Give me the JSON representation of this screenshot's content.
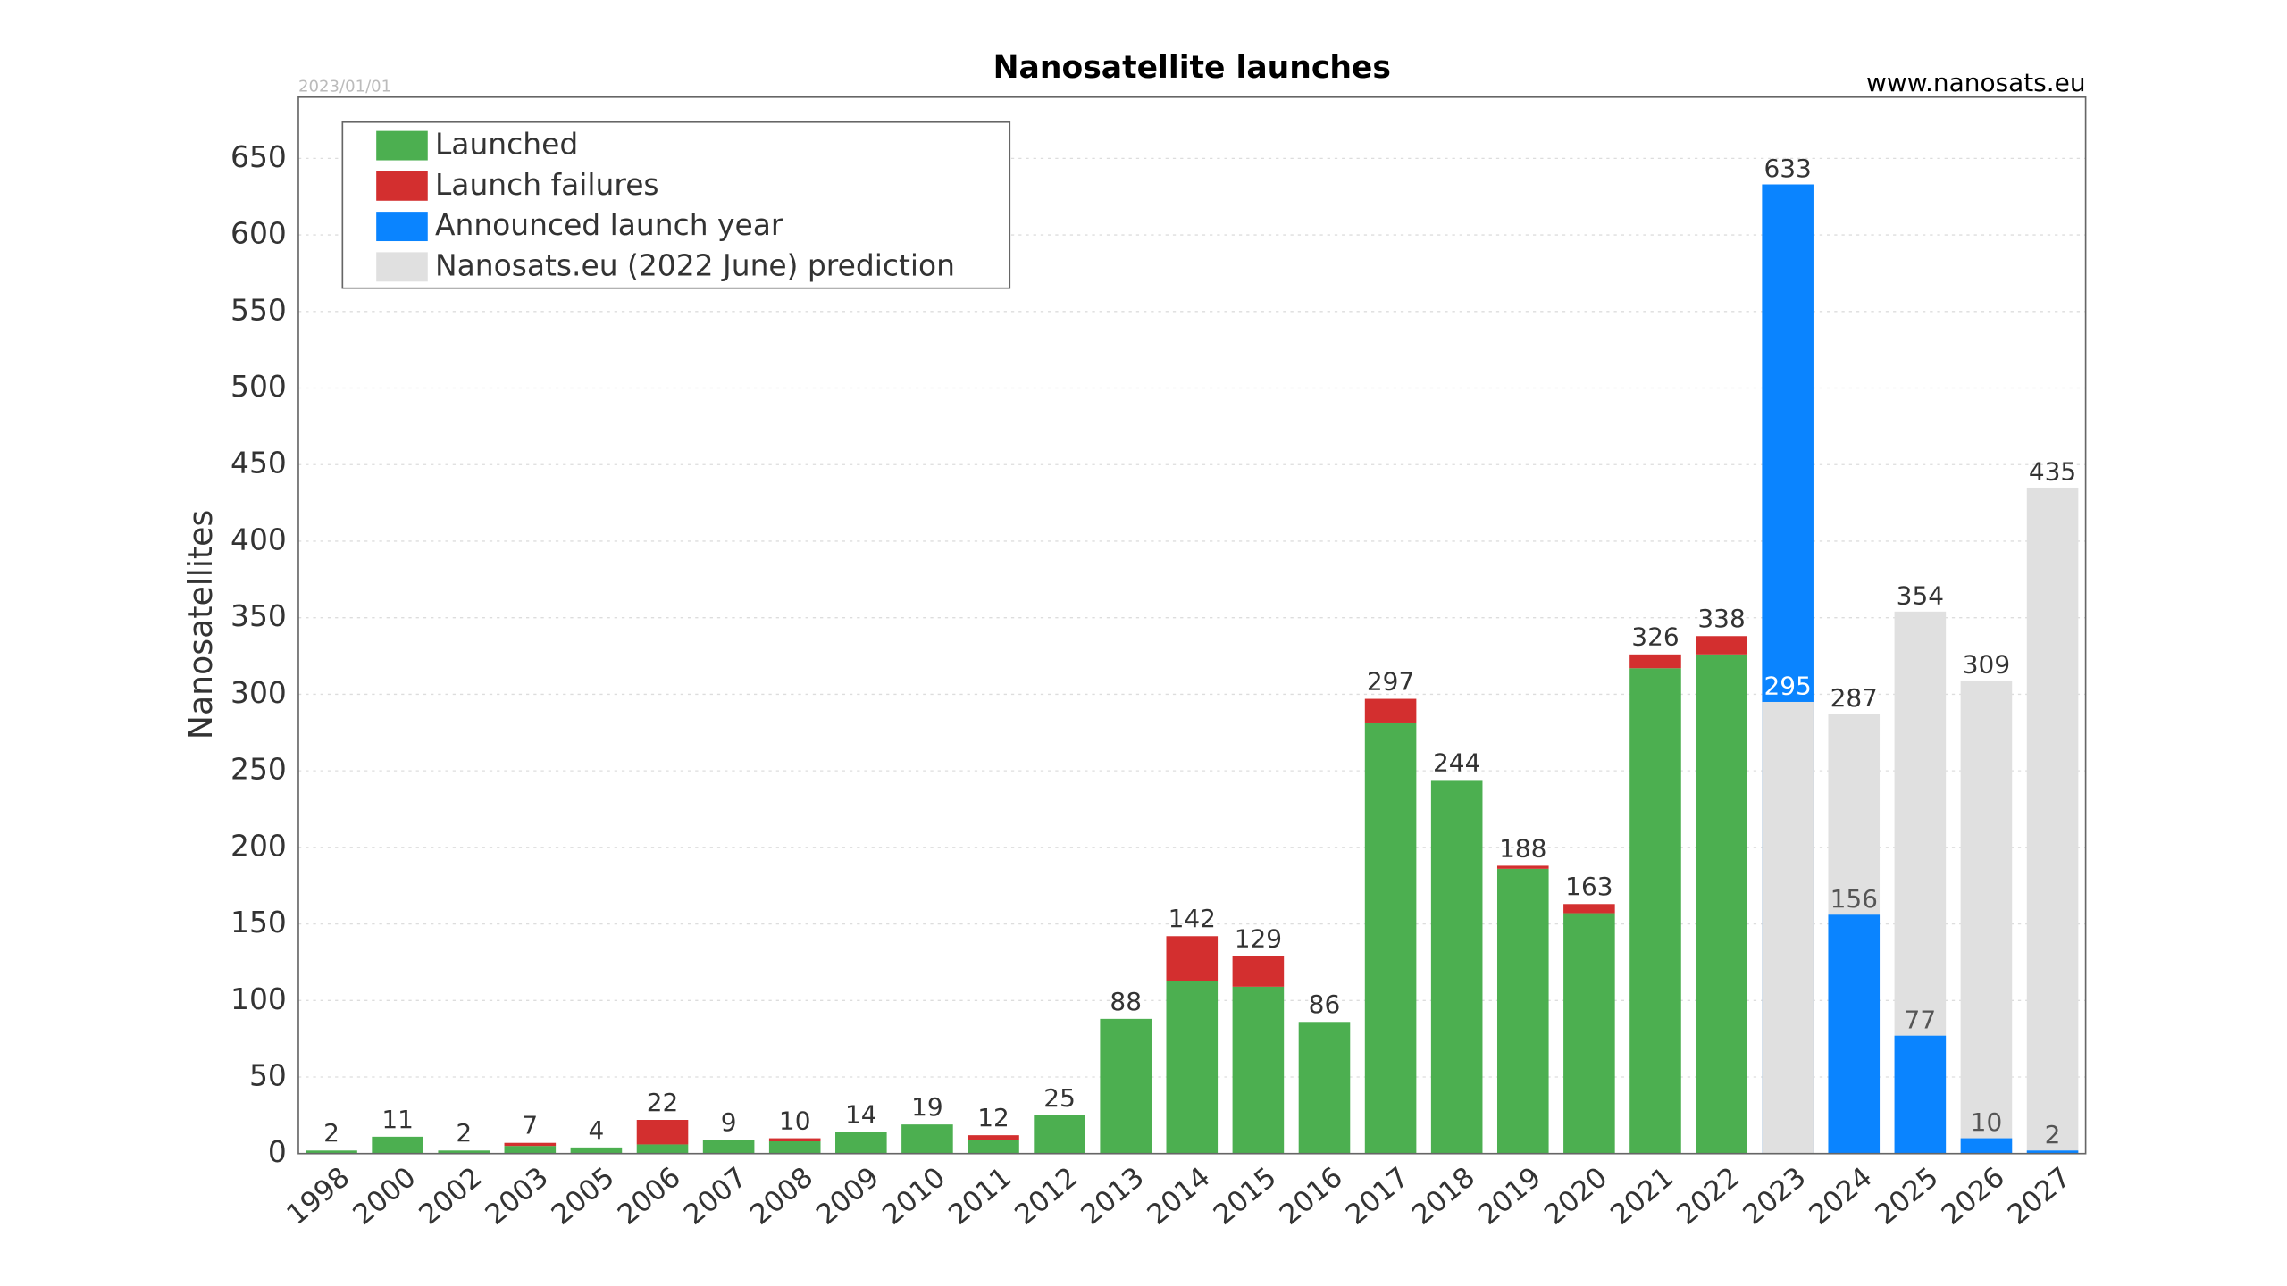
{
  "chart_data": {
    "type": "bar",
    "title": "Nanosatellite launches",
    "date": "2023/01/01",
    "source": "www.nanosats.eu",
    "ylabel": "Nanosatellites",
    "categories": [
      "1998",
      "2000",
      "2002",
      "2003",
      "2005",
      "2006",
      "2007",
      "2008",
      "2009",
      "2010",
      "2011",
      "2012",
      "2013",
      "2014",
      "2015",
      "2016",
      "2017",
      "2018",
      "2019",
      "2020",
      "2021",
      "2022",
      "2023",
      "2024",
      "2025",
      "2026",
      "2027"
    ],
    "series": [
      {
        "name": "Launched",
        "color": "#4caf50",
        "mode": "stack",
        "values": [
          2,
          11,
          2,
          5,
          4,
          6,
          9,
          8,
          14,
          19,
          9,
          25,
          88,
          113,
          109,
          86,
          281,
          244,
          186,
          157,
          317,
          326,
          null,
          null,
          null,
          null,
          null
        ]
      },
      {
        "name": "Launch failures",
        "color": "#d32f2f",
        "mode": "stack",
        "values": [
          0,
          0,
          0,
          2,
          0,
          16,
          0,
          2,
          0,
          0,
          3,
          0,
          0,
          29,
          20,
          0,
          16,
          0,
          2,
          6,
          9,
          12,
          null,
          null,
          null,
          null,
          null
        ]
      },
      {
        "name": "Announced launch year",
        "color": "#0a84ff",
        "mode": "overlay",
        "values": [
          null,
          null,
          null,
          null,
          null,
          null,
          null,
          null,
          null,
          null,
          null,
          null,
          null,
          null,
          null,
          null,
          null,
          null,
          null,
          null,
          null,
          null,
          633,
          156,
          77,
          10,
          2
        ]
      },
      {
        "name": "Nanosats.eu (2022 June) prediction",
        "color": "#e0e0e0",
        "mode": "overlay",
        "values": [
          null,
          null,
          null,
          null,
          null,
          null,
          null,
          null,
          null,
          null,
          null,
          null,
          null,
          null,
          null,
          null,
          null,
          null,
          null,
          null,
          null,
          null,
          295,
          287,
          354,
          309,
          435
        ]
      }
    ],
    "totals": [
      2,
      11,
      2,
      7,
      4,
      22,
      9,
      10,
      14,
      19,
      12,
      25,
      88,
      142,
      129,
      86,
      297,
      244,
      188,
      163,
      326,
      338,
      null,
      null,
      null,
      null,
      null
    ],
    "ylim": [
      0,
      690
    ],
    "yticks": [
      0,
      50,
      100,
      150,
      200,
      250,
      300,
      350,
      400,
      450,
      500,
      550,
      600,
      650
    ],
    "grid": true,
    "legend": "upper left"
  }
}
